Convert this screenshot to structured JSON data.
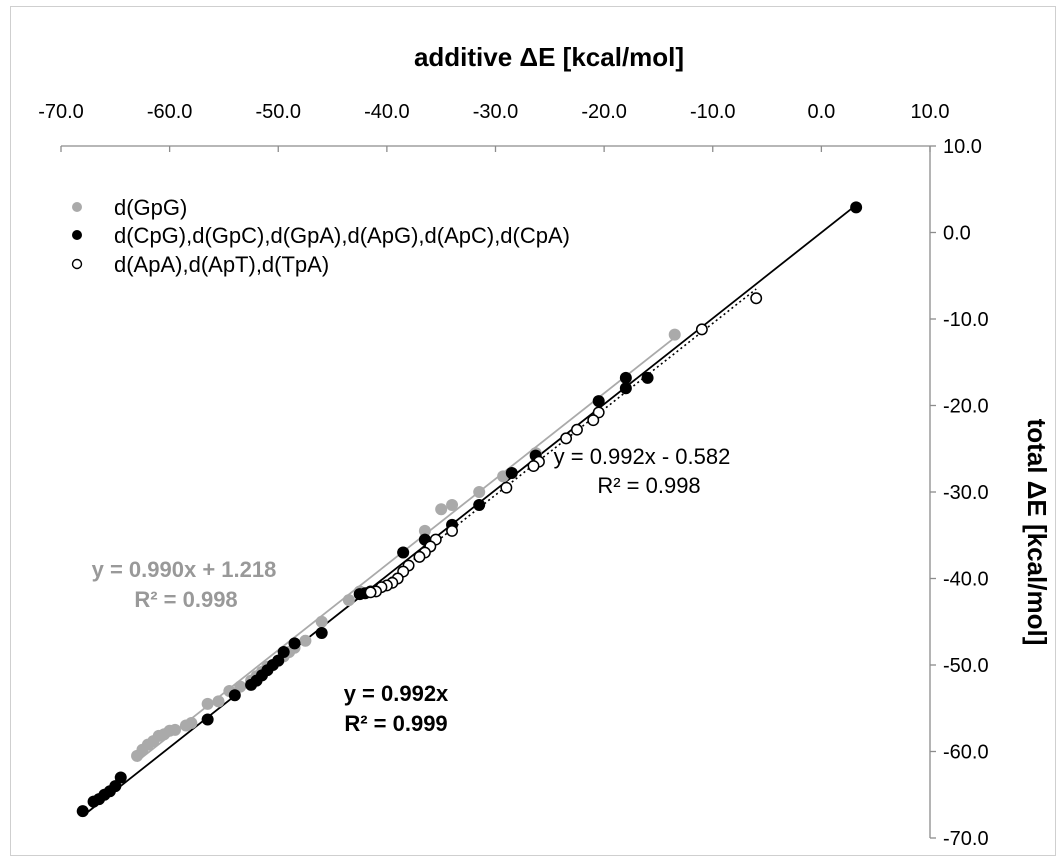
{
  "chart_data": {
    "type": "scatter",
    "title": "",
    "xlabel": "additive ΔE [kcal/mol]",
    "ylabel": "total  ΔE [kcal/mol]",
    "xlim": [
      -70,
      10
    ],
    "ylim": [
      -70,
      10
    ],
    "x_axis_position": "top",
    "y_axis_position": "right",
    "x_ticks": [
      "-70.0",
      "-60.0",
      "-50.0",
      "-40.0",
      "-30.0",
      "-20.0",
      "-10.0",
      "0.0",
      "10.0"
    ],
    "y_ticks": [
      "10.0",
      "0.0",
      "-10.0",
      "-20.0",
      "-30.0",
      "-40.0",
      "-50.0",
      "-60.0",
      "-70.0"
    ],
    "grid": false,
    "legend_position": "top-left",
    "series": [
      {
        "name": "d(GpG)",
        "color": "#aaaaaa",
        "marker": "filled-circle",
        "points": [
          [
            -13.5,
            -11.8
          ],
          [
            -26.3,
            -25.5
          ],
          [
            -29.3,
            -28.2
          ],
          [
            -31.5,
            -30.0
          ],
          [
            -34.0,
            -31.5
          ],
          [
            -35.0,
            -32.0
          ],
          [
            -36.5,
            -34.5
          ],
          [
            -38.5,
            -37.0
          ],
          [
            -42.5,
            -41.5
          ],
          [
            -43.5,
            -42.5
          ],
          [
            -46.0,
            -45.0
          ],
          [
            -47.5,
            -47.2
          ],
          [
            -48.5,
            -48.0
          ],
          [
            -49.0,
            -48.5
          ],
          [
            -49.5,
            -49.0
          ],
          [
            -50.0,
            -49.5
          ],
          [
            -51.0,
            -50.2
          ],
          [
            -51.5,
            -50.8
          ],
          [
            -52.0,
            -51.3
          ],
          [
            -52.5,
            -51.8
          ],
          [
            -53.5,
            -52.5
          ],
          [
            -54.5,
            -53.0
          ],
          [
            -55.5,
            -54.2
          ],
          [
            -56.5,
            -54.5
          ],
          [
            -58.0,
            -56.7
          ],
          [
            -58.5,
            -57.0
          ],
          [
            -59.5,
            -57.5
          ],
          [
            -60.0,
            -57.6
          ],
          [
            -60.5,
            -58.0
          ],
          [
            -61.0,
            -58.2
          ],
          [
            -61.5,
            -58.8
          ],
          [
            -62.0,
            -59.2
          ],
          [
            -62.5,
            -59.8
          ],
          [
            -63.0,
            -60.5
          ]
        ]
      },
      {
        "name": "d(CpG),d(GpC),d(GpA),d(ApG),d(ApC),d(CpA)",
        "color": "#000000",
        "marker": "filled-circle",
        "points": [
          [
            3.2,
            2.9
          ],
          [
            -16.0,
            -16.8
          ],
          [
            -18.0,
            -16.8
          ],
          [
            -18.0,
            -18.0
          ],
          [
            -20.5,
            -19.5
          ],
          [
            -26.3,
            -25.8
          ],
          [
            -28.5,
            -27.8
          ],
          [
            -31.5,
            -31.5
          ],
          [
            -34.0,
            -33.8
          ],
          [
            -36.5,
            -35.5
          ],
          [
            -38.5,
            -37.0
          ],
          [
            -41.5,
            -41.5
          ],
          [
            -42.0,
            -41.7
          ],
          [
            -42.5,
            -41.8
          ],
          [
            -46.0,
            -46.3
          ],
          [
            -48.5,
            -47.5
          ],
          [
            -49.5,
            -48.5
          ],
          [
            -50.0,
            -49.5
          ],
          [
            -50.5,
            -50.0
          ],
          [
            -51.0,
            -50.6
          ],
          [
            -51.5,
            -51.2
          ],
          [
            -52.0,
            -51.8
          ],
          [
            -52.5,
            -52.3
          ],
          [
            -54.0,
            -53.5
          ],
          [
            -56.5,
            -56.3
          ],
          [
            -64.5,
            -63.0
          ],
          [
            -65.0,
            -64.0
          ],
          [
            -65.5,
            -64.6
          ],
          [
            -66.0,
            -65.0
          ],
          [
            -66.5,
            -65.5
          ],
          [
            -67.0,
            -65.8
          ],
          [
            -68.0,
            -66.9
          ]
        ]
      },
      {
        "name": "d(ApA),d(ApT),d(TpA)",
        "color": "#000000",
        "marker": "open-circle",
        "points": [
          [
            -6.0,
            -7.6
          ],
          [
            -11.0,
            -11.2
          ],
          [
            -20.5,
            -20.8
          ],
          [
            -21.0,
            -21.7
          ],
          [
            -22.5,
            -22.8
          ],
          [
            -23.5,
            -23.8
          ],
          [
            -26.0,
            -26.5
          ],
          [
            -26.5,
            -27.0
          ],
          [
            -29.0,
            -29.5
          ],
          [
            -34.0,
            -34.5
          ],
          [
            -35.5,
            -35.5
          ],
          [
            -36.0,
            -36.3
          ],
          [
            -36.5,
            -37.0
          ],
          [
            -37.0,
            -37.5
          ],
          [
            -38.0,
            -38.5
          ],
          [
            -38.5,
            -39.2
          ],
          [
            -39.0,
            -40.0
          ],
          [
            -39.5,
            -40.5
          ],
          [
            -40.0,
            -40.8
          ],
          [
            -40.5,
            -41.0
          ],
          [
            -41.0,
            -41.5
          ],
          [
            -41.5,
            -41.6
          ]
        ]
      }
    ],
    "trendlines": [
      {
        "series": "d(GpG)",
        "color": "#aaaaaa",
        "dash": "solid",
        "slope": 0.99,
        "intercept": 1.218,
        "x_range": [
          -63,
          -13.5
        ],
        "equation": "y = 0.990x + 1.218",
        "r2": "R² = 0.998"
      },
      {
        "series": "d(CpG),d(GpC),d(GpA),d(ApG),d(ApC),d(CpA)",
        "color": "#000000",
        "dash": "solid",
        "slope": 0.992,
        "intercept": 0.0,
        "x_range": [
          -68,
          3.2
        ],
        "equation": "y = 0.992x",
        "r2": "R² = 0.999"
      },
      {
        "series": "d(ApA),d(ApT),d(TpA)",
        "color": "#000000",
        "dash": "dotted",
        "slope": 0.992,
        "intercept": -0.582,
        "x_range": [
          -41.5,
          -6.0
        ],
        "equation": "y = 0.992x - 0.582",
        "r2": "R² = 0.998"
      }
    ]
  }
}
